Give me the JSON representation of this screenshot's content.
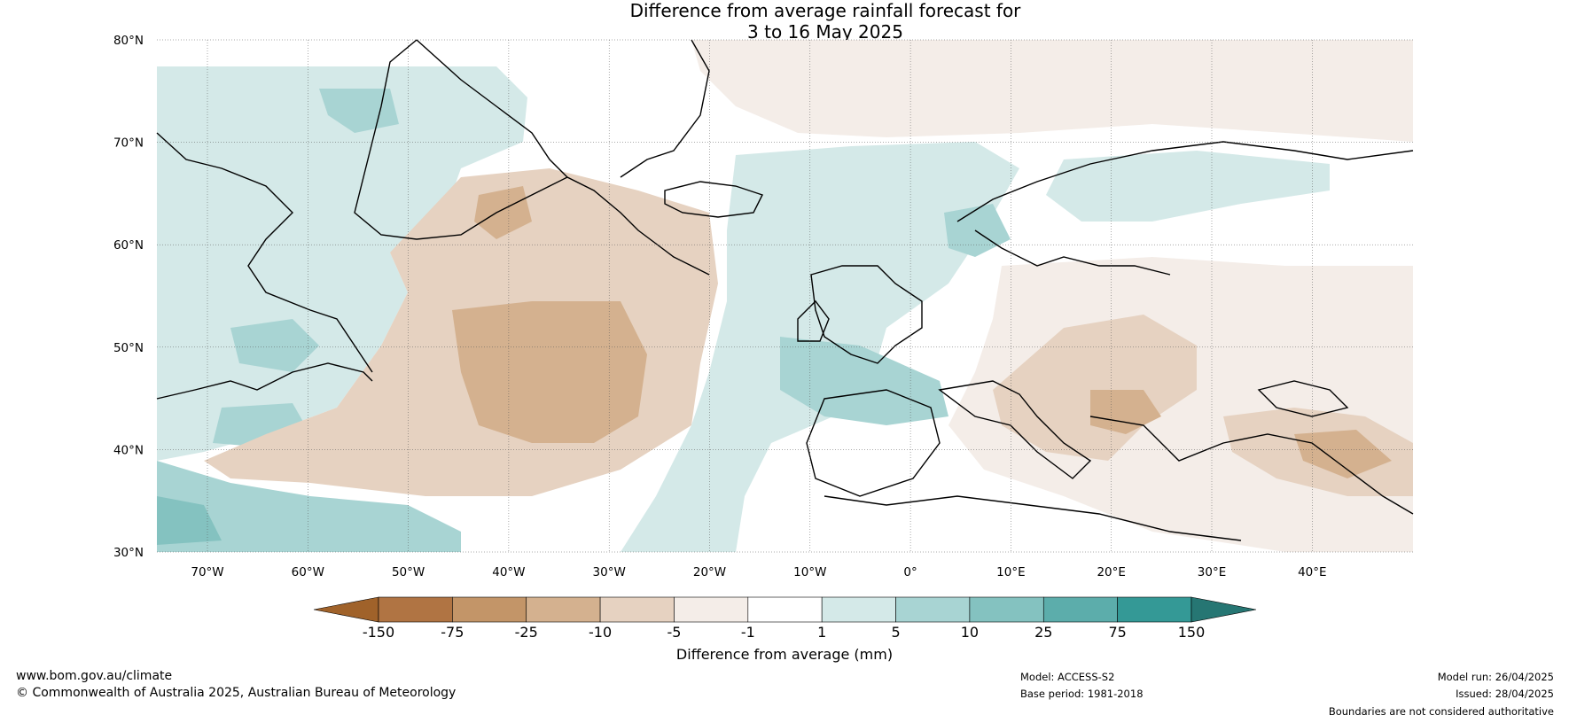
{
  "title_line1": "Difference from average rainfall forecast for",
  "title_line2": "3 to 16 May 2025",
  "lat_labels": [
    "80°N",
    "70°N",
    "60°N",
    "50°N",
    "40°N",
    "30°N"
  ],
  "lon_labels": [
    "70°W",
    "60°W",
    "50°W",
    "40°W",
    "30°W",
    "20°W",
    "10°W",
    "0°",
    "10°E",
    "20°E",
    "30°E",
    "40°E"
  ],
  "colorbar": {
    "ticks": [
      "-150",
      "-75",
      "-25",
      "-10",
      "-5",
      "-1",
      "1",
      "5",
      "10",
      "25",
      "75",
      "150"
    ],
    "colors": [
      "#a0622a",
      "#b07443",
      "#c39568",
      "#d4b18f",
      "#e6d2c1",
      "#f4ede8",
      "#ffffff",
      "#d4e9e8",
      "#a8d4d3",
      "#84c2c0",
      "#5cadab",
      "#349996",
      "#267673"
    ],
    "label": "Difference from average (mm)"
  },
  "footer": {
    "site": "www.bom.gov.au/climate",
    "copyright": "© Commonwealth of Australia 2025, Australian Bureau of Meteorology",
    "model": "Model: ACCESS-S2",
    "base_period": "Base period: 1981-2018",
    "model_run": "Model run: 26/04/2025",
    "issued": "Issued: 28/04/2025",
    "disclaimer": "Boundaries are not considered authoritative"
  }
}
